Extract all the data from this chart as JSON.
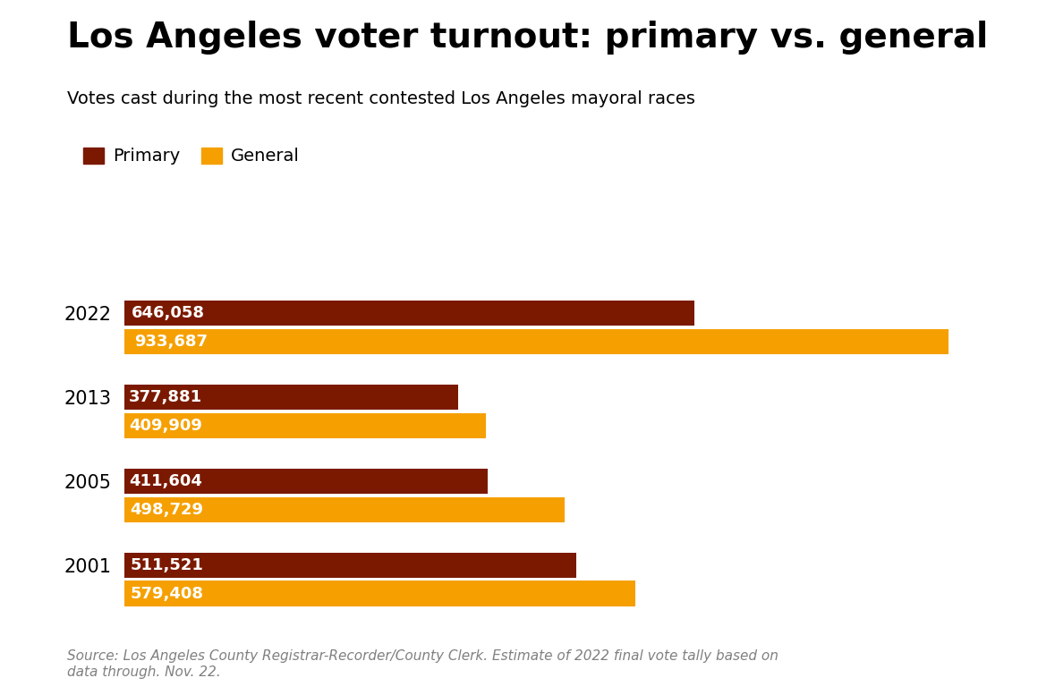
{
  "title": "Los Angeles voter turnout: primary vs. general",
  "subtitle": "Votes cast during the most recent contested Los Angeles mayoral races",
  "source": "Source: Los Angeles County Registrar-Recorder/County Clerk. Estimate of 2022 final vote tally based on\ndata through. Nov. 22.",
  "years": [
    "2022",
    "2013",
    "2005",
    "2001"
  ],
  "primary_values": [
    646058,
    377881,
    411604,
    511521
  ],
  "general_values": [
    933687,
    409909,
    498729,
    579408
  ],
  "primary_labels": [
    "646,058",
    "377,881",
    "411,604",
    "511,521"
  ],
  "general_labels": [
    "933,687",
    "409,909",
    "498,729",
    "579,408"
  ],
  "primary_color": "#7B1900",
  "general_color": "#F5A000",
  "background_color": "#FFFFFF",
  "title_fontsize": 28,
  "subtitle_fontsize": 14,
  "legend_fontsize": 14,
  "bar_label_fontsize": 13,
  "year_label_fontsize": 15,
  "source_fontsize": 11,
  "xlim": [
    0,
    1000000
  ]
}
